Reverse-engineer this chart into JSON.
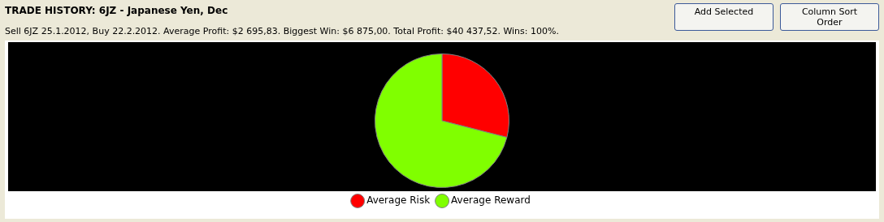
{
  "chart_data": {
    "type": "pie",
    "title": "TRADE HISTORY: 6JZ - Japanese Yen, Dec",
    "subtitle": "Sell 6JZ 25.1.2012, Buy 22.2.2012. Average Profit: $2 695,83. Biggest Win: $6 875,00. Total Profit: $40 437,52. Wins: 100%.",
    "categories": [
      "Average Risk",
      "Average Reward"
    ],
    "values": [
      29,
      71
    ],
    "colors": [
      "#ff0000",
      "#80ff00"
    ],
    "legend": "bottom",
    "annotations": [
      "Add Selected",
      "Column Sort Order"
    ]
  }
}
